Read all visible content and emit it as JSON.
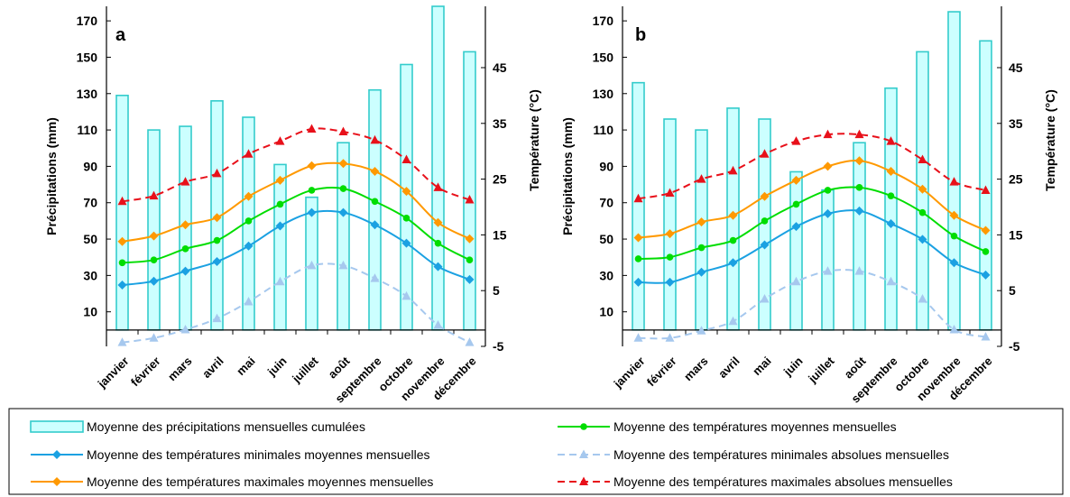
{
  "chart_data": [
    {
      "type": "bar",
      "panel_label": "a",
      "categories": [
        "janvier",
        "février",
        "mars",
        "avril",
        "mai",
        "juin",
        "juillet",
        "août",
        "septembre",
        "octobre",
        "novembre",
        "décembre"
      ],
      "ylabel": "Précipitations (mm)",
      "y2label": "Température (°C)",
      "ylim": [
        -9,
        178
      ],
      "y_ticks": [
        10,
        30,
        50,
        70,
        90,
        110,
        130,
        150,
        170
      ],
      "y2lim": [
        -5,
        56
      ],
      "y2_ticks": [
        -5,
        5,
        15,
        25,
        35,
        45
      ],
      "precipitation": [
        129,
        110,
        112,
        126,
        117,
        91,
        73,
        103,
        132,
        146,
        178,
        153
      ],
      "series": [
        {
          "name": "Moyenne des températures moyennes mensuelles",
          "values": [
            10.0,
            10.5,
            12.5,
            14.0,
            17.5,
            20.5,
            23.0,
            23.3,
            21.0,
            18.0,
            13.5,
            10.5
          ]
        },
        {
          "name": "Moyenne des températures minimales moyennes mensuelles",
          "values": [
            6.0,
            6.7,
            8.5,
            10.2,
            13.0,
            16.6,
            19.0,
            19.0,
            16.8,
            13.5,
            9.3,
            7.0
          ]
        },
        {
          "name": "Moyenne des températures maximales moyennes mensuelles",
          "values": [
            13.8,
            14.8,
            16.8,
            18.1,
            21.9,
            24.8,
            27.4,
            27.8,
            26.4,
            22.8,
            17.2,
            14.3
          ]
        },
        {
          "name": "Moyenne des températures minimales absolues mensuelles",
          "values": [
            -4.3,
            -3.5,
            -2.0,
            0.0,
            3.0,
            6.6,
            9.5,
            9.5,
            7.2,
            4.0,
            -1.2,
            -4.3
          ]
        },
        {
          "name": "Moyenne des températures maximales absolues mensuelles",
          "values": [
            21.0,
            22.0,
            24.5,
            26.0,
            29.5,
            31.8,
            34.0,
            33.5,
            32.0,
            28.5,
            23.5,
            21.3
          ]
        }
      ]
    },
    {
      "type": "bar",
      "panel_label": "b",
      "categories": [
        "janvier",
        "février",
        "mars",
        "avril",
        "mai",
        "juin",
        "juillet",
        "août",
        "septembre",
        "octobre",
        "novembre",
        "décembre"
      ],
      "ylabel": "Précipitations (mm)",
      "y2label": "Température (°C)",
      "ylim": [
        -9,
        178
      ],
      "y_ticks": [
        10,
        30,
        50,
        70,
        90,
        110,
        130,
        150,
        170
      ],
      "y2lim": [
        -5,
        56
      ],
      "y2_ticks": [
        -5,
        5,
        15,
        25,
        35,
        45
      ],
      "precipitation": [
        136,
        116,
        110,
        122,
        116,
        87,
        77,
        103,
        133,
        153,
        175,
        159
      ],
      "series": [
        {
          "name": "Moyenne des températures moyennes mensuelles",
          "values": [
            10.7,
            11.0,
            12.7,
            14.0,
            17.5,
            20.5,
            23.0,
            23.5,
            22.0,
            19.0,
            14.8,
            12.0
          ]
        },
        {
          "name": "Moyenne des températures minimales moyennes mensuelles",
          "values": [
            6.5,
            6.5,
            8.3,
            10.0,
            13.2,
            16.5,
            18.8,
            19.3,
            17.0,
            14.2,
            10.0,
            7.8
          ]
        },
        {
          "name": "Moyenne des températures maximales moyennes mensuelles",
          "values": [
            14.5,
            15.2,
            17.3,
            18.5,
            21.9,
            24.8,
            27.3,
            28.3,
            26.4,
            23.2,
            18.5,
            15.8
          ]
        },
        {
          "name": "Moyenne des températures minimales absolues mensuelles",
          "values": [
            -3.5,
            -3.5,
            -2.2,
            -0.5,
            3.5,
            6.6,
            8.5,
            8.5,
            6.6,
            3.5,
            -2.0,
            -3.3
          ]
        },
        {
          "name": "Moyenne des températures maximales absolues mensuelles",
          "values": [
            21.5,
            22.5,
            25.0,
            26.5,
            29.5,
            31.8,
            33.0,
            33.0,
            31.8,
            28.5,
            24.5,
            23.0
          ]
        }
      ]
    }
  ],
  "legend": {
    "items": [
      {
        "key": "precip",
        "label": "Moyenne des précipitations mensuelles cumulées"
      },
      {
        "key": "mean",
        "label": "Moyenne des températures moyennes mensuelles"
      },
      {
        "key": "min",
        "label": "Moyenne des températures minimales moyennes mensuelles"
      },
      {
        "key": "absmin",
        "label": "Moyenne des températures minimales absolues mensuelles"
      },
      {
        "key": "max",
        "label": "Moyenne des températures maximales moyennes mensuelles"
      },
      {
        "key": "absmax",
        "label": "Moyenne des températures maximales absolues mensuelles"
      }
    ]
  },
  "colors": {
    "bar_fill": "#ccffff",
    "bar_stroke": "#33cccc",
    "mean": "#00dd00",
    "min": "#1ba1e2",
    "max": "#ff9900",
    "absmin": "#a6c8ee",
    "absmax": "#e8101a"
  }
}
